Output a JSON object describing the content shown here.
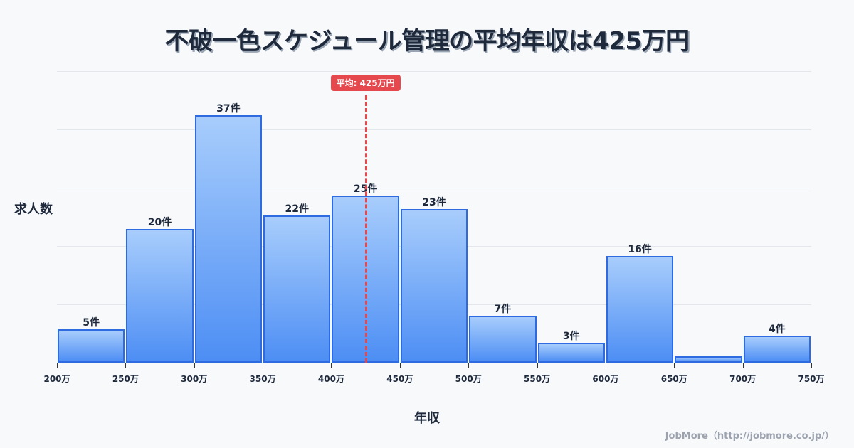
{
  "title": "不破一色スケジュール管理の平均年収は425万円",
  "footer": "JobMore（http://jobmore.co.jp/）",
  "colors": {
    "bar_top": "#a8cdfc",
    "bar_bottom": "#4d8ef4",
    "bar_border": "#2f6be0",
    "mean": "#e5484d",
    "background": "#f8f9fb"
  },
  "chart_data": {
    "type": "bar",
    "title": "不破一色スケジュール管理の平均年収は425万円",
    "xlabel": "年収",
    "ylabel": "求人数",
    "categories": [
      "200-250万",
      "250-300万",
      "300-350万",
      "350-400万",
      "400-450万",
      "450-500万",
      "500-550万",
      "550-600万",
      "600-650万",
      "650-700万",
      "700-750万"
    ],
    "values": [
      5,
      20,
      37,
      22,
      25,
      23,
      7,
      3,
      16,
      1,
      4
    ],
    "labels": [
      "5件",
      "20件",
      "37件",
      "22件",
      "25件",
      "23件",
      "7件",
      "3件",
      "16件",
      "",
      "4件"
    ],
    "x_ticks": [
      "200万",
      "250万",
      "300万",
      "350万",
      "400万",
      "450万",
      "500万",
      "550万",
      "600万",
      "650万",
      "700万",
      "750万"
    ],
    "ylim": [
      0,
      43.6
    ],
    "grid": true,
    "gridline_count": 5,
    "mean": {
      "value": 425,
      "label": "平均: 425万円"
    }
  }
}
